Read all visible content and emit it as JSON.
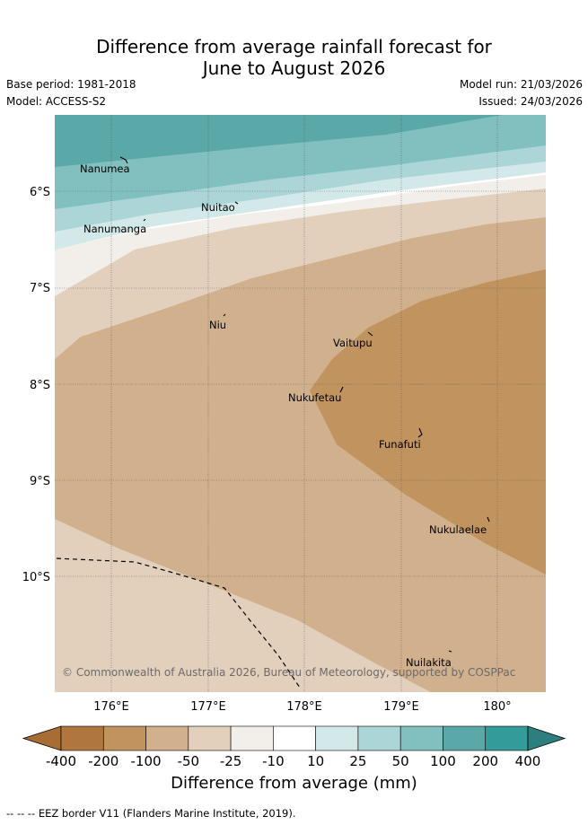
{
  "title_line1": "Difference from average rainfall forecast for",
  "title_line2": "June to August 2026",
  "meta": {
    "base_period": "Base period: 1981-2018",
    "model": "Model: ACCESS-S2",
    "model_run": "Model run: 21/03/2026",
    "issued": "Issued: 24/03/2026"
  },
  "credit": "© Commonwealth of Australia 2026, Bureau of Meteorology, supported by COSPPac",
  "places": [
    {
      "name": "Nanumea"
    },
    {
      "name": "Nuitao"
    },
    {
      "name": "Nanumanga"
    },
    {
      "name": "Niu"
    },
    {
      "name": "Vaitupu"
    },
    {
      "name": "Nukufetau"
    },
    {
      "name": "Funafuti"
    },
    {
      "name": "Nukulaelae"
    },
    {
      "name": "Nuilakita"
    }
  ],
  "lat_labels": [
    "6°S",
    "7°S",
    "8°S",
    "9°S",
    "10°S"
  ],
  "lon_labels": [
    "176°E",
    "177°E",
    "178°E",
    "179°E",
    "180°"
  ],
  "legend": {
    "title": "Difference from average (mm)",
    "ticks": [
      "-400",
      "-200",
      "-100",
      "-50",
      "-25",
      "-10",
      "10",
      "25",
      "50",
      "100",
      "200",
      "400"
    ],
    "colors": [
      "#a86c35",
      "#b0763f",
      "#c1935f",
      "#d1b08e",
      "#e2cfbc",
      "#f2eee9",
      "#ffffff",
      "#d3e8e8",
      "#abd5d6",
      "#82bfbf",
      "#5aa8a8",
      "#349b9b",
      "#2d7f7f"
    ]
  },
  "footnote": "--  --  -- EEZ border V11 (Flanders Marine Institute, 2019)."
}
